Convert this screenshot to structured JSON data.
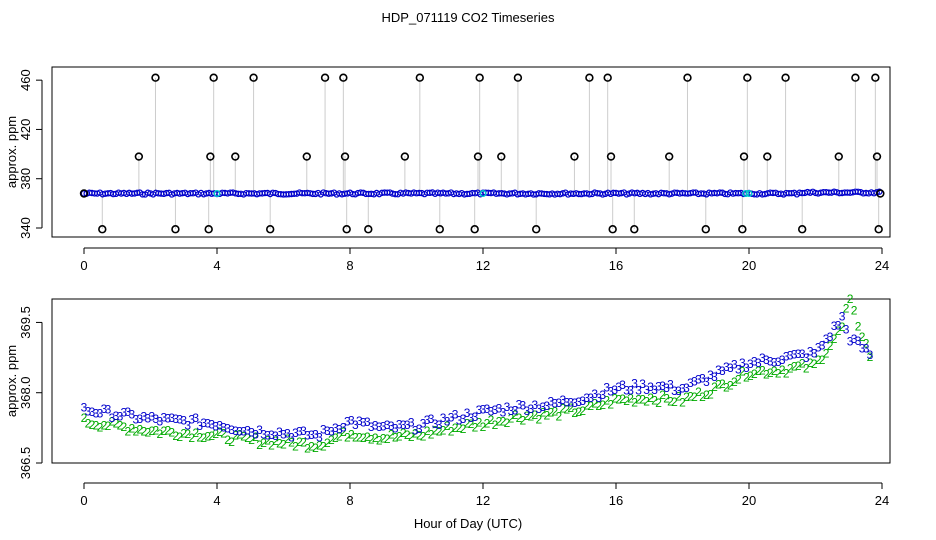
{
  "title": "HDP_071119  CO2 Timeseries",
  "xlabel": "Hour of Day (UTC)",
  "colors": {
    "black": "#000000",
    "blue": "#0000cc",
    "green": "#00aa00",
    "cyan": "#00cccc",
    "grey": "#9a9a9a"
  },
  "chart_data": [
    {
      "type": "scatter",
      "name": "top-panel",
      "ylabel": "approx. ppm",
      "xlim": [
        0,
        24
      ],
      "ylim": [
        340,
        465
      ],
      "xticks": [
        "0",
        "4",
        "8",
        "12",
        "16",
        "20",
        "24"
      ],
      "yticks": [
        "340",
        "380",
        "420",
        "460"
      ],
      "series": [
        {
          "name": "baseline",
          "symbol": "o",
          "color": "#0000cc",
          "value": 368
        },
        {
          "name": "spikes-high",
          "symbol": "o",
          "color": "#000000",
          "value": 462,
          "x": [
            2.15,
            3.9,
            5.1,
            7.25,
            7.8,
            10.1,
            11.9,
            13.05,
            15.2,
            15.75,
            18.15,
            19.95,
            21.1,
            23.2,
            23.8
          ]
        },
        {
          "name": "spikes-mid",
          "symbol": "o",
          "color": "#000000",
          "value": 398,
          "x": [
            1.65,
            3.8,
            4.55,
            6.7,
            7.85,
            9.65,
            11.85,
            12.55,
            14.75,
            15.85,
            17.6,
            19.85,
            20.55,
            22.7,
            23.85
          ]
        },
        {
          "name": "spikes-low",
          "symbol": "o",
          "color": "#000000",
          "value": 339,
          "x": [
            0.55,
            2.75,
            3.75,
            5.6,
            7.9,
            8.55,
            10.7,
            11.75,
            13.6,
            15.9,
            16.55,
            18.7,
            19.8,
            21.6,
            23.9
          ]
        }
      ]
    },
    {
      "type": "scatter",
      "name": "bottom-panel",
      "ylabel": "approx. ppm",
      "xlim": [
        0,
        24
      ],
      "ylim": [
        366.5,
        370.0
      ],
      "xticks": [
        "0",
        "4",
        "8",
        "12",
        "16",
        "20",
        "24"
      ],
      "yticks": [
        "366.5",
        "368.0",
        "369.5"
      ],
      "series": [
        {
          "name": "3",
          "symbol": "3",
          "color": "#0000cc",
          "x": [
            0,
            1,
            2,
            3,
            4,
            5,
            6,
            7,
            8,
            9,
            10,
            11,
            12,
            13,
            14,
            15,
            16,
            17,
            18,
            19,
            20,
            21,
            22,
            22.8,
            23,
            23.7
          ],
          "y": [
            367.55,
            367.45,
            367.35,
            367.3,
            367.25,
            367.1,
            367.05,
            367.0,
            367.3,
            367.15,
            367.2,
            367.35,
            367.5,
            367.6,
            367.65,
            367.8,
            368.0,
            368.05,
            368.0,
            368.3,
            368.55,
            368.65,
            368.75,
            369.5,
            369.1,
            368.7
          ]
        },
        {
          "name": "2",
          "symbol": "2",
          "color": "#00aa00",
          "x": [
            0,
            1,
            2,
            3,
            4,
            5,
            6,
            7,
            8,
            9,
            10,
            11,
            12,
            13,
            14,
            15,
            16,
            17,
            18,
            19,
            20,
            21,
            22,
            22.8,
            23,
            23.7
          ],
          "y": [
            367.3,
            367.2,
            367.1,
            367.05,
            367.0,
            366.9,
            366.85,
            366.8,
            367.05,
            366.95,
            367.0,
            367.15,
            367.25,
            367.4,
            367.45,
            367.55,
            367.75,
            367.8,
            367.75,
            368.0,
            368.35,
            368.4,
            368.5,
            369.3,
            369.9,
            368.6
          ]
        }
      ]
    }
  ]
}
